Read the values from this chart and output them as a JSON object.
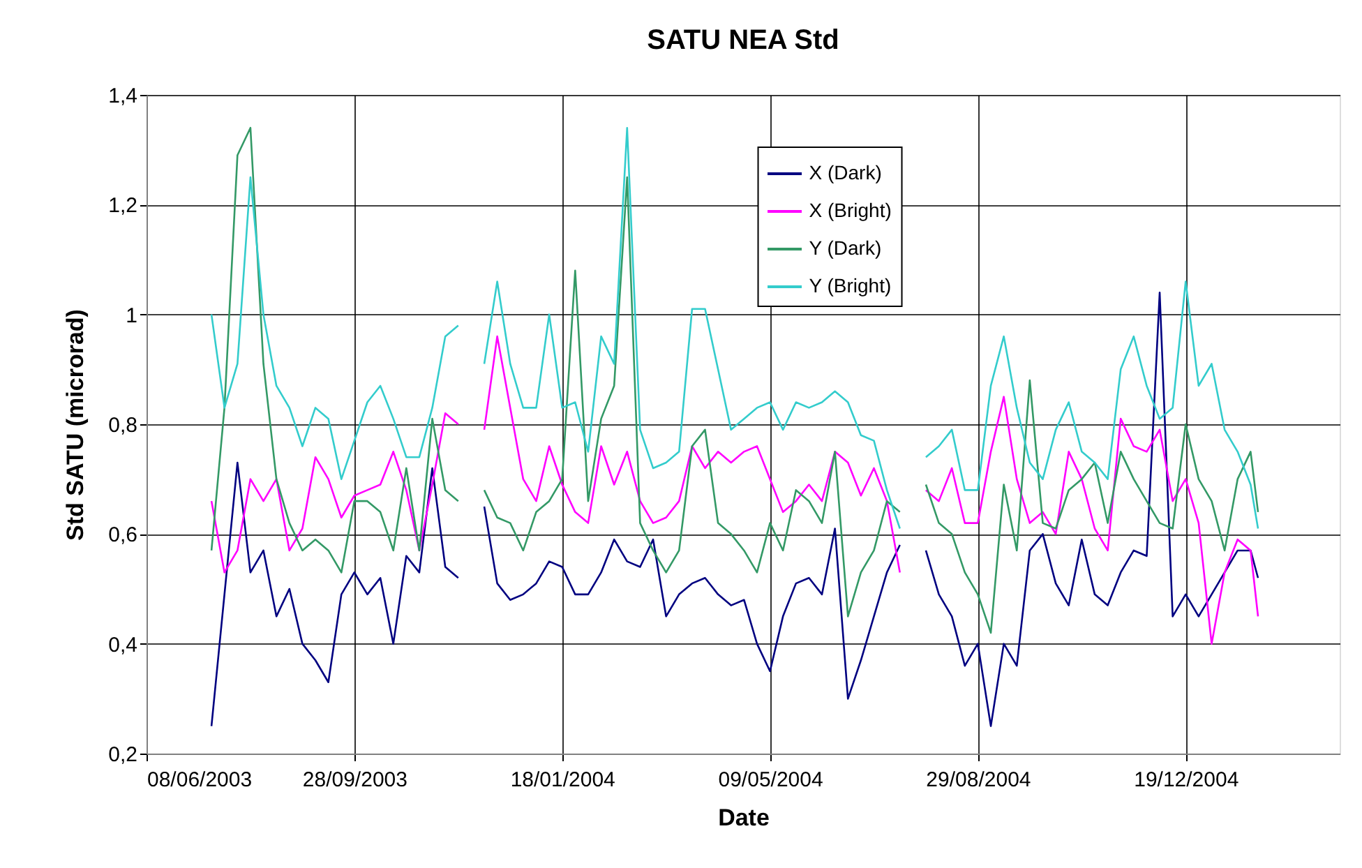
{
  "chart_data": {
    "type": "line",
    "title": "SATU NEA Std",
    "xlabel": "Date",
    "ylabel": "Std SATU (microrad)",
    "x": [
      "2003-07-13",
      "2003-07-20",
      "2003-07-27",
      "2003-08-03",
      "2003-08-10",
      "2003-08-17",
      "2003-08-24",
      "2003-08-31",
      "2003-09-07",
      "2003-09-14",
      "2003-09-21",
      "2003-09-28",
      "2003-10-05",
      "2003-10-12",
      "2003-10-19",
      "2003-10-26",
      "2003-11-02",
      "2003-11-09",
      "2003-11-16",
      "2003-11-23",
      "2003-11-30",
      "2003-12-07",
      "2003-12-14",
      "2003-12-21",
      "2003-12-28",
      "2004-01-04",
      "2004-01-11",
      "2004-01-18",
      "2004-01-25",
      "2004-02-01",
      "2004-02-08",
      "2004-02-15",
      "2004-02-22",
      "2004-02-29",
      "2004-03-07",
      "2004-03-14",
      "2004-03-21",
      "2004-03-28",
      "2004-04-04",
      "2004-04-11",
      "2004-04-18",
      "2004-04-25",
      "2004-05-02",
      "2004-05-09",
      "2004-05-16",
      "2004-05-23",
      "2004-05-30",
      "2004-06-06",
      "2004-06-13",
      "2004-06-20",
      "2004-06-27",
      "2004-07-04",
      "2004-07-11",
      "2004-07-18",
      "2004-07-25",
      "2004-08-01",
      "2004-08-08",
      "2004-08-15",
      "2004-08-22",
      "2004-08-29",
      "2004-09-05",
      "2004-09-12",
      "2004-09-19",
      "2004-09-26",
      "2004-10-03",
      "2004-10-10",
      "2004-10-17",
      "2004-10-24",
      "2004-10-31",
      "2004-11-07",
      "2004-11-14",
      "2004-11-21",
      "2004-11-28",
      "2004-12-05",
      "2004-12-12",
      "2004-12-19",
      "2004-12-26",
      "2005-01-02",
      "2005-01-09",
      "2005-01-16",
      "2005-01-23",
      "2005-01-27"
    ],
    "series": [
      {
        "name": "X (Dark)",
        "color": "#000080",
        "values": [
          0.25,
          0.49,
          0.73,
          0.53,
          0.57,
          0.45,
          0.5,
          0.4,
          0.37,
          0.33,
          0.49,
          0.53,
          0.49,
          0.52,
          0.4,
          0.56,
          0.53,
          0.72,
          0.54,
          0.52,
          null,
          0.65,
          0.51,
          0.48,
          0.49,
          0.51,
          0.55,
          0.54,
          0.49,
          0.49,
          0.53,
          0.59,
          0.55,
          0.54,
          0.59,
          0.45,
          0.49,
          0.51,
          0.52,
          0.49,
          0.47,
          0.48,
          0.4,
          0.35,
          0.45,
          0.51,
          0.52,
          0.49,
          0.61,
          0.3,
          0.37,
          0.45,
          0.53,
          0.58,
          null,
          0.57,
          0.49,
          0.45,
          0.36,
          0.4,
          0.25,
          0.4,
          0.36,
          0.57,
          0.6,
          0.51,
          0.47,
          0.59,
          0.49,
          0.47,
          0.53,
          0.57,
          0.56,
          1.04,
          0.45,
          0.49,
          0.45,
          0.49,
          0.53,
          0.57,
          0.57,
          0.52
        ]
      },
      {
        "name": "X (Bright)",
        "color": "#ff00ff",
        "values": [
          0.66,
          0.53,
          0.57,
          0.7,
          0.66,
          0.7,
          0.57,
          0.61,
          0.74,
          0.7,
          0.63,
          0.67,
          0.68,
          0.69,
          0.75,
          0.68,
          0.57,
          0.69,
          0.82,
          0.8,
          null,
          0.79,
          0.96,
          0.83,
          0.7,
          0.66,
          0.76,
          0.69,
          0.64,
          0.62,
          0.76,
          0.69,
          0.75,
          0.66,
          0.62,
          0.63,
          0.66,
          0.76,
          0.72,
          0.75,
          0.73,
          0.75,
          0.76,
          0.7,
          0.64,
          0.66,
          0.69,
          0.66,
          0.75,
          0.73,
          0.67,
          0.72,
          0.66,
          0.53,
          null,
          0.68,
          0.66,
          0.72,
          0.62,
          0.62,
          0.75,
          0.85,
          0.7,
          0.62,
          0.64,
          0.6,
          0.75,
          0.7,
          0.61,
          0.57,
          0.81,
          0.76,
          0.75,
          0.79,
          0.66,
          0.7,
          0.62,
          0.4,
          0.53,
          0.59,
          0.57,
          0.45
        ]
      },
      {
        "name": "Y (Dark)",
        "color": "#339966",
        "values": [
          0.57,
          0.83,
          1.29,
          1.34,
          0.91,
          0.7,
          0.62,
          0.57,
          0.59,
          0.57,
          0.53,
          0.66,
          0.66,
          0.64,
          0.57,
          0.72,
          0.57,
          0.81,
          0.68,
          0.66,
          null,
          0.68,
          0.63,
          0.62,
          0.57,
          0.64,
          0.66,
          0.7,
          1.08,
          0.66,
          0.81,
          0.87,
          1.25,
          0.62,
          0.57,
          0.53,
          0.57,
          0.76,
          0.79,
          0.62,
          0.6,
          0.57,
          0.53,
          0.62,
          0.57,
          0.68,
          0.66,
          0.62,
          0.75,
          0.45,
          0.53,
          0.57,
          0.66,
          0.64,
          null,
          0.69,
          0.62,
          0.6,
          0.53,
          0.49,
          0.42,
          0.69,
          0.57,
          0.88,
          0.62,
          0.61,
          0.68,
          0.7,
          0.73,
          0.62,
          0.75,
          0.7,
          0.66,
          0.62,
          0.61,
          0.8,
          0.7,
          0.66,
          0.57,
          0.7,
          0.75,
          0.64
        ]
      },
      {
        "name": "Y (Bright)",
        "color": "#33cccc",
        "values": [
          1.0,
          0.83,
          0.91,
          1.25,
          1.0,
          0.87,
          0.83,
          0.76,
          0.83,
          0.81,
          0.7,
          0.77,
          0.84,
          0.87,
          0.81,
          0.74,
          0.74,
          0.83,
          0.96,
          0.98,
          null,
          0.91,
          1.06,
          0.91,
          0.83,
          0.83,
          1.0,
          0.83,
          0.84,
          0.75,
          0.96,
          0.91,
          1.34,
          0.79,
          0.72,
          0.73,
          0.75,
          1.01,
          1.01,
          0.9,
          0.79,
          0.81,
          0.83,
          0.84,
          0.79,
          0.84,
          0.83,
          0.84,
          0.86,
          0.84,
          0.78,
          0.77,
          0.68,
          0.61,
          null,
          0.74,
          0.76,
          0.79,
          0.68,
          0.68,
          0.87,
          0.96,
          0.83,
          0.73,
          0.7,
          0.79,
          0.84,
          0.75,
          0.73,
          0.7,
          0.9,
          0.96,
          0.87,
          0.81,
          0.83,
          1.06,
          0.87,
          0.91,
          0.79,
          0.75,
          0.69,
          0.61
        ]
      }
    ],
    "xlim": [
      "2003-06-08",
      "2005-03-12"
    ],
    "xticks": [
      {
        "value": "2003-06-08",
        "label": "08/06/2003"
      },
      {
        "value": "2003-09-28",
        "label": "28/09/2003"
      },
      {
        "value": "2004-01-18",
        "label": "18/01/2004"
      },
      {
        "value": "2004-05-09",
        "label": "09/05/2004"
      },
      {
        "value": "2004-08-29",
        "label": "29/08/2004"
      },
      {
        "value": "2004-12-19",
        "label": "19/12/2004"
      }
    ],
    "ylim": [
      0.2,
      1.4
    ],
    "yticks": [
      {
        "value": 0.2,
        "label": "0,2"
      },
      {
        "value": 0.4,
        "label": "0,4"
      },
      {
        "value": 0.6,
        "label": "0,6"
      },
      {
        "value": 0.8,
        "label": "0,8"
      },
      {
        "value": 1,
        "label": "1"
      },
      {
        "value": 1.2,
        "label": "1,2"
      },
      {
        "value": 1.4,
        "label": "1,4"
      }
    ],
    "grid": true,
    "legend": "top"
  }
}
